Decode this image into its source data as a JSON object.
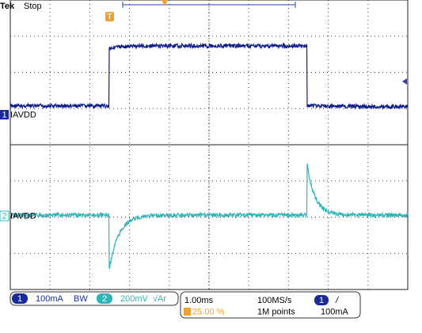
{
  "header": {
    "brand": "Tek",
    "status": "Stop"
  },
  "trigger_marker": "T",
  "channels": [
    {
      "number": "1",
      "label": "IAVDD"
    },
    {
      "number": "2",
      "label": "IAVDD"
    }
  ],
  "readout": {
    "ch1_number": "1",
    "ch1_scale": "100mA",
    "bw_icon": "BW",
    "ch2_number": "2",
    "ch2_scale": "200mV",
    "ch2_icon": "√Ar",
    "timebase": "1.00ms",
    "sample_rate": "100MS/s",
    "trigger_position": "25.00 %",
    "record_length": "1M points",
    "trigger_source": "1",
    "trigger_slope": "/",
    "trigger_level": "100mA"
  }
}
